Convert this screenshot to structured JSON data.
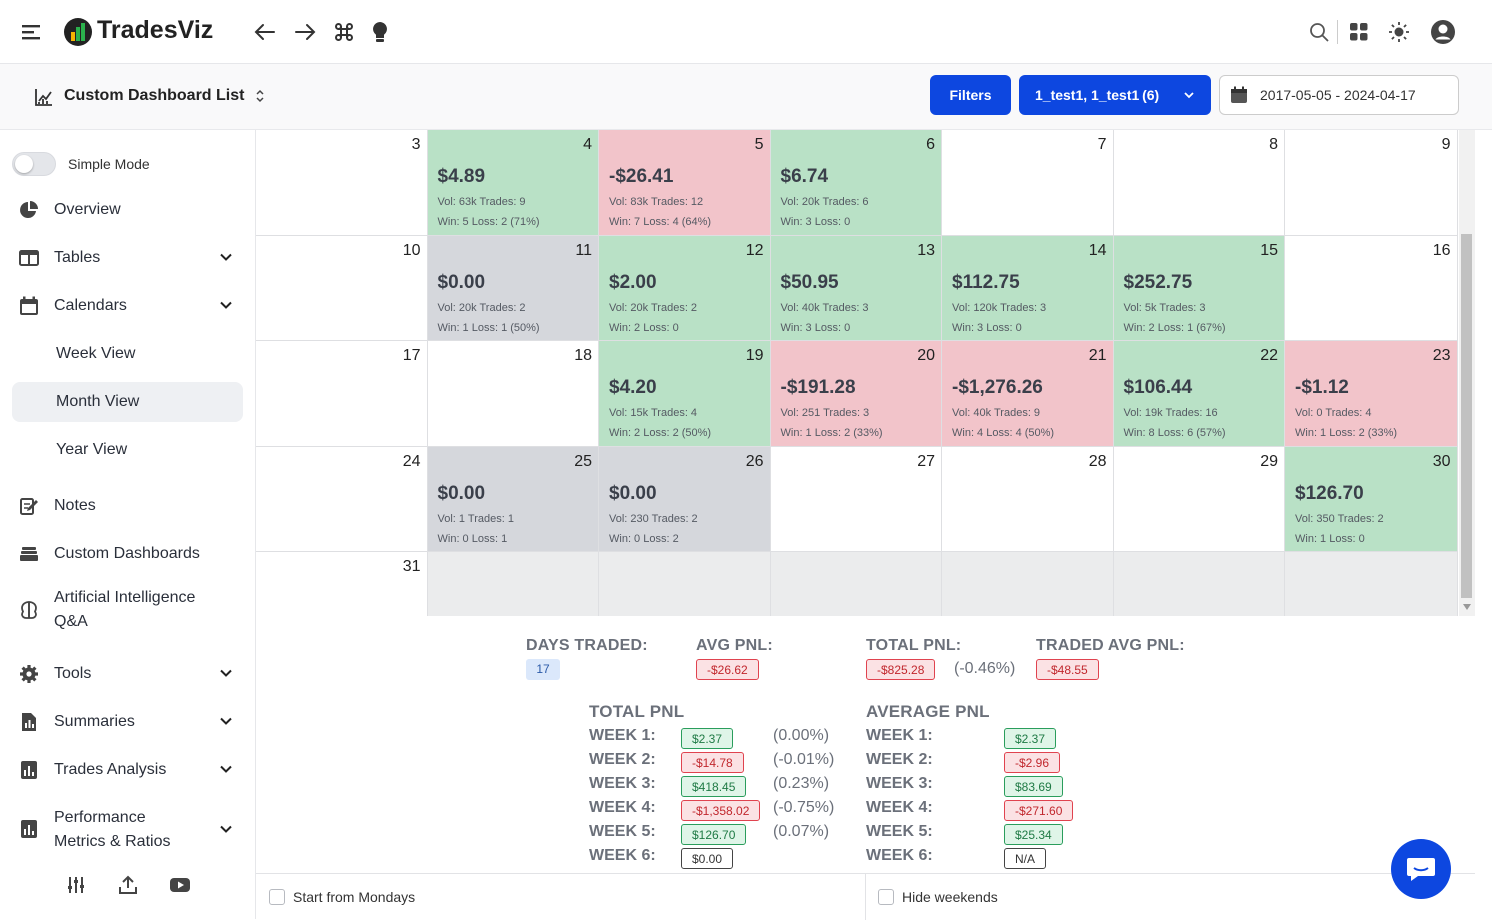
{
  "app": {
    "name": "TradesViz"
  },
  "subbar": {
    "dashboard_title": "Custom Dashboard List",
    "filters_label": "Filters",
    "accounts_label": "1_test1, 1_test1 (6)",
    "date_range": "2017-05-05 - 2024-04-17"
  },
  "sidebar": {
    "simple_mode": "Simple Mode",
    "items": {
      "overview": "Overview",
      "tables": "Tables",
      "calendars": "Calendars",
      "week_view": "Week View",
      "month_view": "Month View",
      "year_view": "Year View",
      "notes": "Notes",
      "custom_dashboards": "Custom Dashboards",
      "ai_qa_line1": "Artificial Intelligence",
      "ai_qa_line2": "Q&A",
      "tools": "Tools",
      "summaries": "Summaries",
      "trades_analysis": "Trades Analysis",
      "performance": "Performance",
      "performance_cut": "Metrics & Ratios"
    }
  },
  "calendar": {
    "weeks": [
      [
        {
          "day": "3",
          "status": "empty"
        },
        {
          "day": "4",
          "status": "g",
          "pnl": "$4.89",
          "line1": "Vol: 63k Trades: 9",
          "line2": "Win: 5 Loss: 2 (71%)"
        },
        {
          "day": "5",
          "status": "r",
          "pnl": "-$26.41",
          "line1": "Vol: 83k Trades: 12",
          "line2": "Win: 7 Loss: 4 (64%)"
        },
        {
          "day": "6",
          "status": "g",
          "pnl": "$6.74",
          "line1": "Vol: 20k Trades: 6",
          "line2": "Win: 3 Loss: 0"
        },
        {
          "day": "7",
          "status": "empty"
        },
        {
          "day": "8",
          "status": "empty"
        },
        {
          "day": "9",
          "status": "empty"
        }
      ],
      [
        {
          "day": "10",
          "status": "empty"
        },
        {
          "day": "11",
          "status": "n",
          "pnl": "$0.00",
          "line1": "Vol: 20k Trades: 2",
          "line2": "Win: 1 Loss: 1 (50%)"
        },
        {
          "day": "12",
          "status": "g",
          "pnl": "$2.00",
          "line1": "Vol: 20k Trades: 2",
          "line2": "Win: 2 Loss: 0"
        },
        {
          "day": "13",
          "status": "g",
          "pnl": "$50.95",
          "line1": "Vol: 40k Trades: 3",
          "line2": "Win: 3 Loss: 0"
        },
        {
          "day": "14",
          "status": "g",
          "pnl": "$112.75",
          "line1": "Vol: 120k Trades: 3",
          "line2": "Win: 3 Loss: 0"
        },
        {
          "day": "15",
          "status": "g",
          "pnl": "$252.75",
          "line1": "Vol: 5k Trades: 3",
          "line2": "Win: 2 Loss: 1 (67%)"
        },
        {
          "day": "16",
          "status": "empty"
        }
      ],
      [
        {
          "day": "17",
          "status": "empty"
        },
        {
          "day": "18",
          "status": "empty"
        },
        {
          "day": "19",
          "status": "g",
          "pnl": "$4.20",
          "line1": "Vol: 15k Trades: 4",
          "line2": "Win: 2 Loss: 2 (50%)"
        },
        {
          "day": "20",
          "status": "r",
          "pnl": "-$191.28",
          "line1": "Vol: 251 Trades: 3",
          "line2": "Win: 1 Loss: 2 (33%)"
        },
        {
          "day": "21",
          "status": "r",
          "pnl": "-$1,276.26",
          "line1": "Vol: 40k Trades: 9",
          "line2": "Win: 4 Loss: 4 (50%)"
        },
        {
          "day": "22",
          "status": "g",
          "pnl": "$106.44",
          "line1": "Vol: 19k Trades: 16",
          "line2": "Win: 8 Loss: 6 (57%)"
        },
        {
          "day": "23",
          "status": "r",
          "pnl": "-$1.12",
          "line1": "Vol: 0 Trades: 4",
          "line2": "Win: 1 Loss: 2 (33%)"
        }
      ],
      [
        {
          "day": "24",
          "status": "empty"
        },
        {
          "day": "25",
          "status": "n",
          "pnl": "$0.00",
          "line1": "Vol: 1 Trades: 1",
          "line2": "Win: 0 Loss: 1"
        },
        {
          "day": "26",
          "status": "n",
          "pnl": "$0.00",
          "line1": "Vol: 230 Trades: 2",
          "line2": "Win: 0 Loss: 2"
        },
        {
          "day": "27",
          "status": "empty"
        },
        {
          "day": "28",
          "status": "empty"
        },
        {
          "day": "29",
          "status": "empty"
        },
        {
          "day": "30",
          "status": "g",
          "pnl": "$126.70",
          "line1": "Vol: 350 Trades: 2",
          "line2": "Win: 1 Loss: 0"
        }
      ],
      [
        {
          "day": "31",
          "status": "empty"
        },
        {
          "day": "",
          "status": "e"
        },
        {
          "day": "",
          "status": "e"
        },
        {
          "day": "",
          "status": "e"
        },
        {
          "day": "",
          "status": "e"
        },
        {
          "day": "",
          "status": "e"
        },
        {
          "day": "",
          "status": "e"
        }
      ]
    ]
  },
  "stats": {
    "days_traded_label": "DAYS TRADED:",
    "days_traded": "17",
    "avg_pnl_label": "AVG PNL:",
    "avg_pnl": "-$26.62",
    "total_pnl_label": "TOTAL PNL:",
    "total_pnl": "-$825.28",
    "total_pnl_pct": "(-0.46%)",
    "traded_avg_label": "TRADED AVG PNL:",
    "traded_avg": "-$48.55",
    "total_title": "TOTAL PNL",
    "average_title": "AVERAGE PNL",
    "weeks": [
      {
        "label": "WEEK 1:",
        "total": "$2.37",
        "total_kind": "green",
        "pct": "(0.00%)",
        "avg": "$2.37",
        "avg_kind": "green"
      },
      {
        "label": "WEEK 2:",
        "total": "-$14.78",
        "total_kind": "red",
        "pct": "(-0.01%)",
        "avg": "-$2.96",
        "avg_kind": "red"
      },
      {
        "label": "WEEK 3:",
        "total": "$418.45",
        "total_kind": "green",
        "pct": "(0.23%)",
        "avg": "$83.69",
        "avg_kind": "green"
      },
      {
        "label": "WEEK 4:",
        "total": "-$1,358.02",
        "total_kind": "red",
        "pct": "(-0.75%)",
        "avg": "-$271.60",
        "avg_kind": "red"
      },
      {
        "label": "WEEK 5:",
        "total": "$126.70",
        "total_kind": "green",
        "pct": "(0.07%)",
        "avg": "$25.34",
        "avg_kind": "green"
      },
      {
        "label": "WEEK 6:",
        "total": "$0.00",
        "total_kind": "grey",
        "pct": "",
        "avg": "N/A",
        "avg_kind": "grey"
      }
    ]
  },
  "bottom": {
    "start_mondays": "Start from Mondays",
    "hide_weekends": "Hide weekends"
  },
  "colors": {
    "primary": "#0d47e0",
    "profit_cell": "#b9e1c6",
    "loss_cell": "#f2c4ca",
    "neutral_cell": "#d5d7dc"
  }
}
